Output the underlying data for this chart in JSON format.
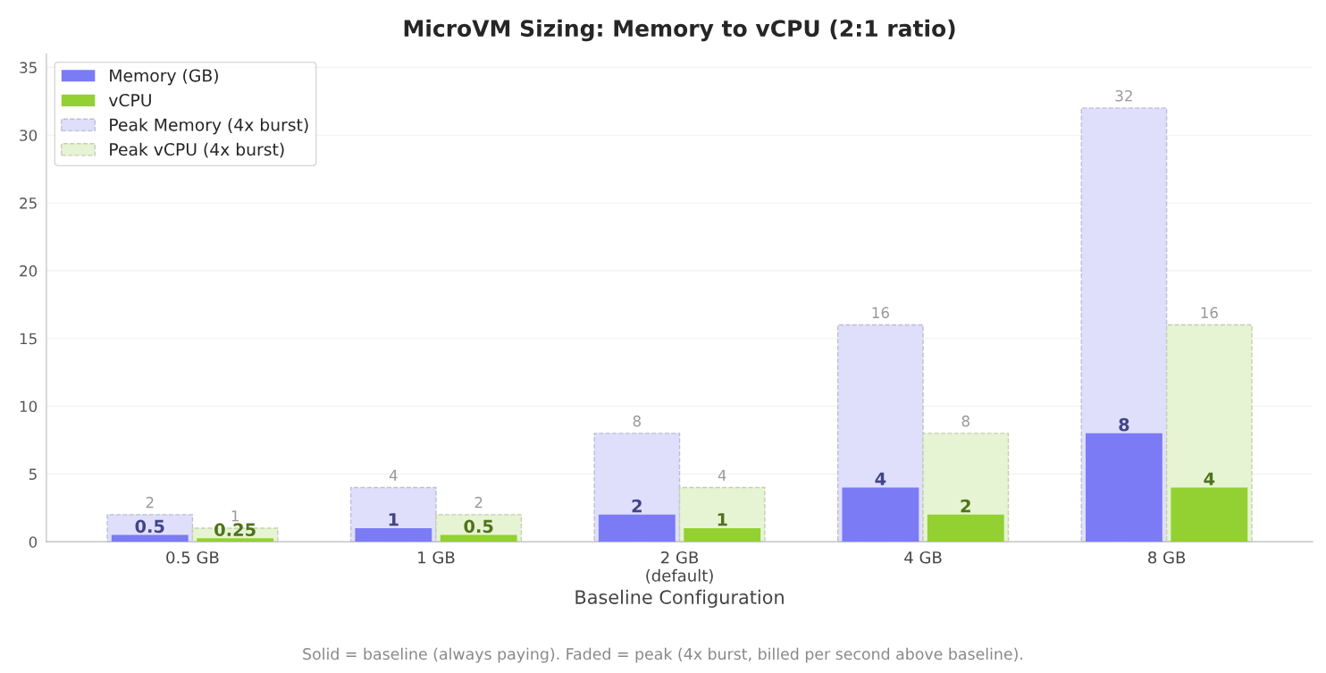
{
  "chart_data": {
    "type": "bar",
    "title": "MicroVM Sizing: Memory to vCPU (2:1 ratio)",
    "xlabel": "Baseline Configuration",
    "categories": [
      "0.5 GB",
      "1 GB",
      "2 GB\n(default)",
      "4 GB",
      "8 GB"
    ],
    "series": [
      {
        "name": "Memory (GB)",
        "color": "#7b7bf5",
        "values": [
          0.5,
          1,
          2,
          4,
          8
        ]
      },
      {
        "name": "vCPU",
        "color": "#92d131",
        "values": [
          0.25,
          0.5,
          1,
          2,
          4
        ]
      },
      {
        "name": "Peak Memory (4x burst)",
        "color": "#dfdffc",
        "line_style": "dashed",
        "values": [
          2,
          4,
          8,
          16,
          32
        ]
      },
      {
        "name": "Peak vCPU (4x burst)",
        "color": "#e6f4d4",
        "line_style": "dashed",
        "values": [
          1,
          2,
          4,
          8,
          16
        ]
      }
    ],
    "ylim": [
      0,
      36
    ],
    "yticks": [
      0,
      5,
      10,
      15,
      20,
      25,
      30,
      35
    ],
    "grid": "y",
    "legend": "top left",
    "data_labels": true,
    "annotations": [
      "Solid = baseline (always paying). Faded = peak (4x burst, billed per second above baseline)."
    ]
  }
}
